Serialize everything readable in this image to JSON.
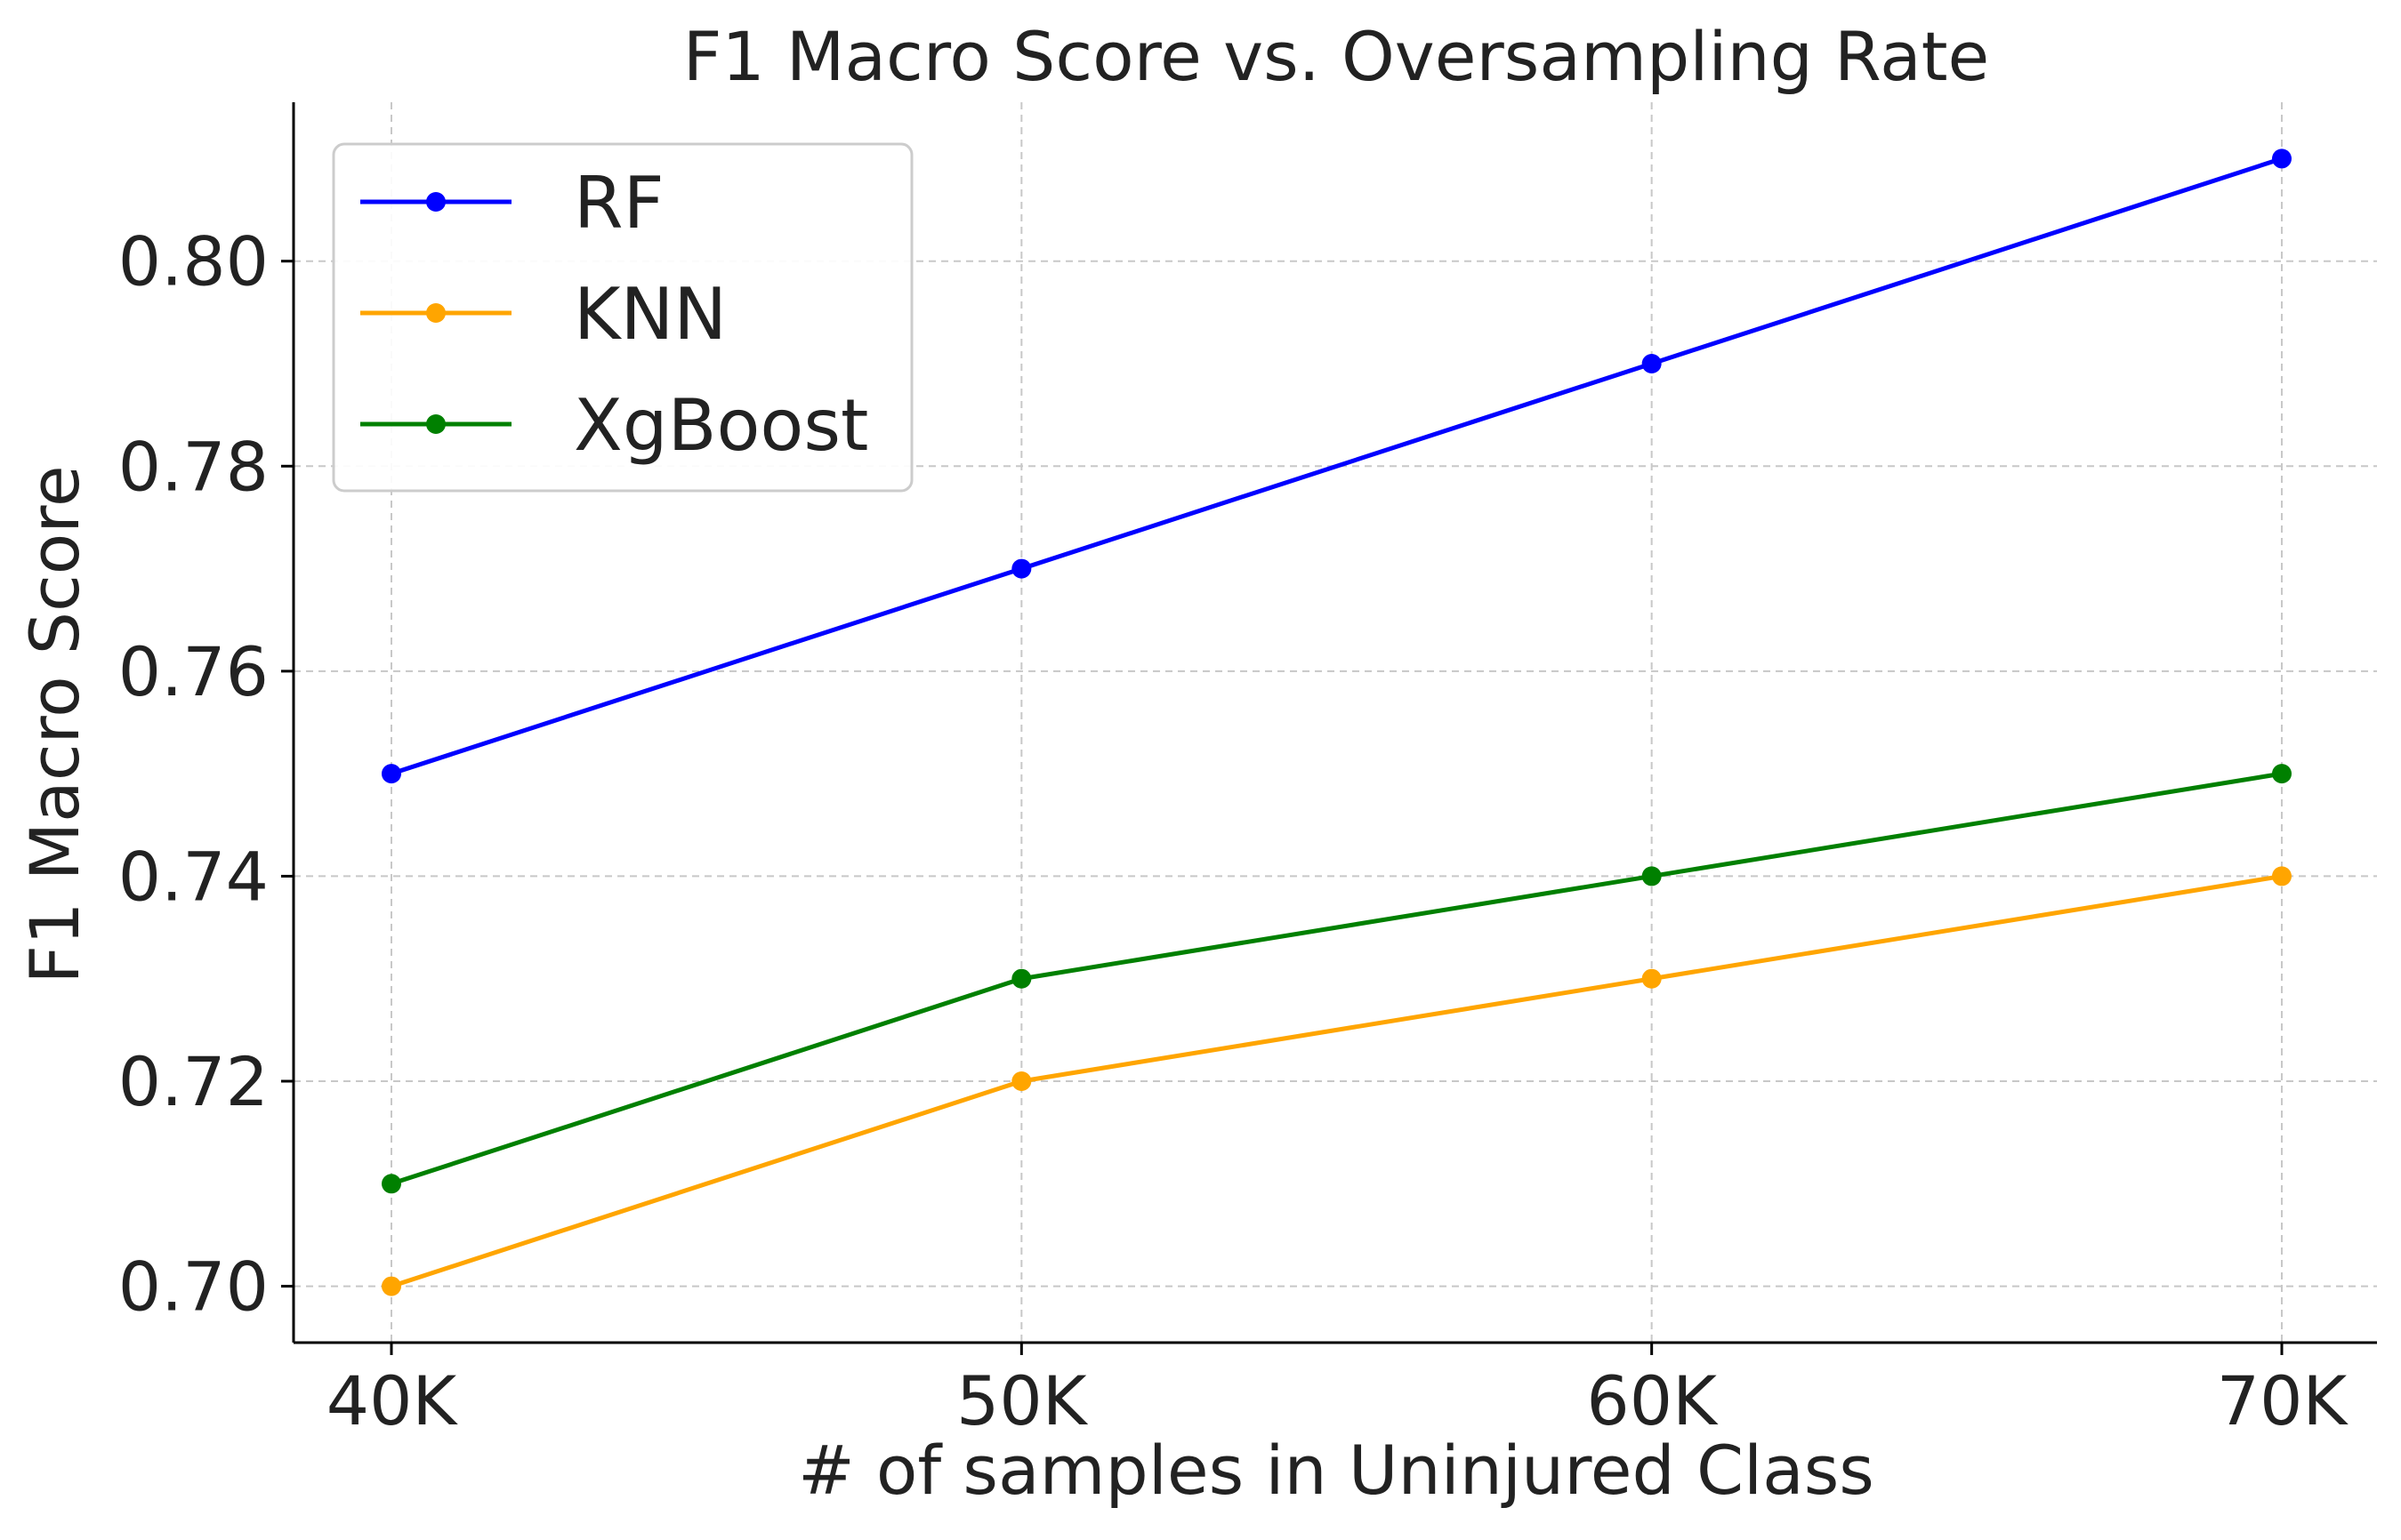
{
  "chart_data": {
    "type": "line",
    "title": "F1 Macro Score vs. Oversampling Rate",
    "xlabel": "# of samples in Uninjured Class",
    "ylabel": "F1 Macro Score",
    "categories": [
      "40K",
      "50K",
      "60K",
      "70K"
    ],
    "ylim": [
      0.6945,
      0.8155
    ],
    "yticks": [
      0.7,
      0.72,
      0.74,
      0.76,
      0.78,
      0.8
    ],
    "ytick_labels": [
      "0.70",
      "0.72",
      "0.74",
      "0.76",
      "0.78",
      "0.80"
    ],
    "grid": true,
    "legend_position": "top-left",
    "series": [
      {
        "name": "RF",
        "color": "#0000ff",
        "values": [
          0.75,
          0.77,
          0.79,
          0.81
        ]
      },
      {
        "name": "KNN",
        "color": "#ffa500",
        "values": [
          0.7,
          0.72,
          0.73,
          0.74
        ]
      },
      {
        "name": "XgBoost",
        "color": "#008000",
        "values": [
          0.71,
          0.73,
          0.74,
          0.75
        ]
      }
    ]
  }
}
